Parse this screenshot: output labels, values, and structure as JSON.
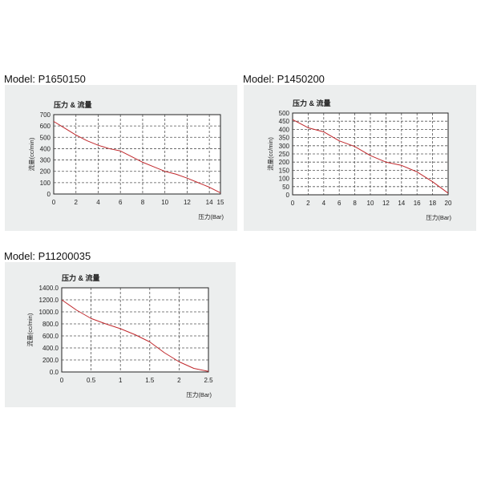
{
  "page": {
    "background": "#ffffff"
  },
  "style": {
    "panel_background": "#eceeee",
    "plot_background": "#ffffff",
    "grid_color": "#555555",
    "axis_color": "#222222",
    "line_color": "#c0282c"
  },
  "models": [
    {
      "label": "Model: P1650150"
    },
    {
      "label": "Model: P1450200"
    },
    {
      "label": "Model: P11200035"
    }
  ],
  "chart_data": [
    {
      "type": "line",
      "title": "压力 & 流量",
      "xlabel": "压力(Bar)",
      "ylabel": "流量(cc/min)",
      "xlim": [
        0,
        15
      ],
      "ylim": [
        0,
        700
      ],
      "x_ticks": [
        0,
        2,
        4,
        6,
        8,
        10,
        12,
        14,
        15
      ],
      "x_tick_labels": [
        "0",
        "2",
        "4",
        "6",
        "8",
        "10",
        "12",
        "14",
        "15"
      ],
      "y_ticks": [
        0,
        100,
        200,
        300,
        400,
        500,
        600,
        700
      ],
      "y_tick_labels": [
        "0",
        "100",
        "200",
        "300",
        "400",
        "500",
        "600",
        "700"
      ],
      "grid": true,
      "series": [
        {
          "x": [
            0,
            1,
            2,
            3,
            4,
            5,
            6,
            7,
            8,
            9,
            10,
            11,
            12,
            13,
            14,
            15
          ],
          "values": [
            640,
            580,
            520,
            470,
            430,
            400,
            380,
            330,
            280,
            240,
            200,
            175,
            140,
            100,
            60,
            10
          ]
        }
      ]
    },
    {
      "type": "line",
      "title": "压力 & 流量",
      "xlabel": "压力(Bar)",
      "ylabel": "流量(cc/min)",
      "xlim": [
        0,
        20
      ],
      "ylim": [
        0,
        500
      ],
      "x_ticks": [
        0,
        2,
        4,
        6,
        8,
        10,
        12,
        14,
        16,
        18,
        20
      ],
      "x_tick_labels": [
        "0",
        "2",
        "4",
        "6",
        "8",
        "10",
        "12",
        "14",
        "16",
        "18",
        "20"
      ],
      "y_ticks": [
        0,
        50,
        100,
        150,
        200,
        250,
        300,
        350,
        400,
        450,
        500
      ],
      "y_tick_labels": [
        "0",
        "50",
        "100",
        "150",
        "200",
        "250",
        "300",
        "350",
        "400",
        "450",
        "500"
      ],
      "grid": true,
      "series": [
        {
          "x": [
            0,
            2,
            4,
            6,
            8,
            10,
            12,
            14,
            16,
            18,
            20
          ],
          "values": [
            460,
            410,
            385,
            330,
            295,
            240,
            200,
            180,
            140,
            80,
            10
          ]
        }
      ]
    },
    {
      "type": "line",
      "title": "压力 & 流量",
      "xlabel": "压力(Bar)",
      "ylabel": "流量(cc/min)",
      "xlim": [
        0,
        2.5
      ],
      "ylim": [
        0,
        1400
      ],
      "x_ticks": [
        0,
        0.5,
        1,
        1.5,
        2,
        2.5
      ],
      "x_tick_labels": [
        "0",
        "0.5",
        "1",
        "1.5",
        "2",
        "2.5"
      ],
      "y_ticks": [
        0,
        200,
        400,
        600,
        800,
        1000,
        1200,
        1400
      ],
      "y_tick_labels": [
        "0.0",
        "200.0",
        "400.0",
        "600.0",
        "800.0",
        "1000.0",
        "1200.0",
        "1400.0"
      ],
      "grid": true,
      "series": [
        {
          "x": [
            0,
            0.25,
            0.5,
            0.75,
            1,
            1.25,
            1.5,
            1.75,
            2,
            2.25,
            2.5
          ],
          "values": [
            1200,
            1030,
            890,
            800,
            720,
            620,
            500,
            320,
            170,
            60,
            10
          ]
        }
      ]
    }
  ]
}
